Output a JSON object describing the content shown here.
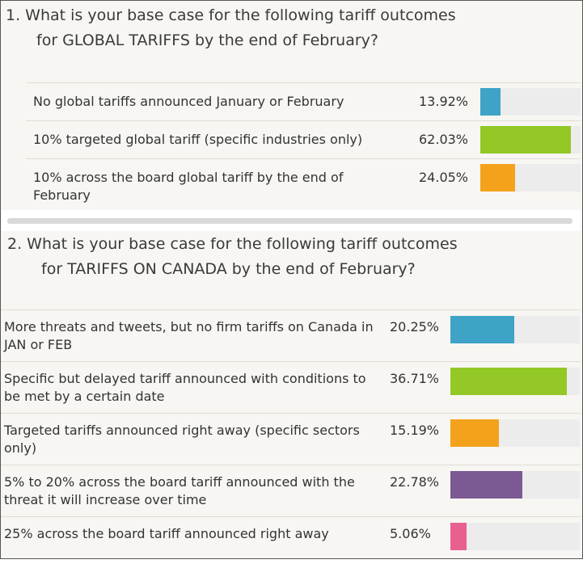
{
  "questions": [
    {
      "title_line1": "1. What is your base case for the following tariff outcomes",
      "title_line2": "for GLOBAL TARIFFS by the end of February?",
      "max_percent": 62.03,
      "options": [
        {
          "label": "No global tariffs announced January or February",
          "percent_text": "13.92%",
          "percent": 13.92,
          "color": "#3ea3c6"
        },
        {
          "label": "10% targeted global tariff (specific industries only)",
          "percent_text": "62.03%",
          "percent": 62.03,
          "color": "#93c827"
        },
        {
          "label": "10% across the board global tariff by the end of February",
          "percent_text": "24.05%",
          "percent": 24.05,
          "color": "#f4a21b"
        }
      ]
    },
    {
      "title_line1": "2. What is your base case for the following tariff outcomes",
      "title_line2": "for TARIFFS ON CANADA by the end of February?",
      "max_percent": 36.71,
      "options": [
        {
          "label": "More threats and tweets, but no firm tariffs on Canada in JAN or FEB",
          "percent_text": "20.25%",
          "percent": 20.25,
          "color": "#3ea3c6"
        },
        {
          "label": "Specific but delayed tariff announced with conditions to be met by a certain date",
          "percent_text": "36.71%",
          "percent": 36.71,
          "color": "#93c827"
        },
        {
          "label": "Targeted tariffs announced right away (specific sectors only)",
          "percent_text": "15.19%",
          "percent": 15.19,
          "color": "#f4a21b"
        },
        {
          "label": "5% to 20% across the board tariff announced with the threat it will increase over time",
          "percent_text": "22.78%",
          "percent": 22.78,
          "color": "#7b5a94"
        },
        {
          "label": "25% across the board tariff announced right away",
          "percent_text": "5.06%",
          "percent": 5.06,
          "color": "#e8608f"
        }
      ]
    }
  ],
  "chart_data": [
    {
      "type": "bar",
      "title": "1. What is your base case for the following tariff outcomes for GLOBAL TARIFFS by the end of February?",
      "categories": [
        "No global tariffs announced January or February",
        "10% targeted global tariff (specific industries only)",
        "10% across the board global tariff by the end of February"
      ],
      "values": [
        13.92,
        62.03,
        24.05
      ],
      "orientation": "horizontal",
      "unit": "%"
    },
    {
      "type": "bar",
      "title": "2. What is your base case for the following tariff outcomes for TARIFFS ON CANADA by the end of February?",
      "categories": [
        "More threats and tweets, but no firm tariffs on Canada in JAN or FEB",
        "Specific but delayed tariff announced with conditions to be met by a certain date",
        "Targeted tariffs announced right away (specific sectors only)",
        "5% to 20% across the board tariff announced with the threat it will increase over time",
        "25% across the board tariff announced right away"
      ],
      "values": [
        20.25,
        36.71,
        15.19,
        22.78,
        5.06
      ],
      "orientation": "horizontal",
      "unit": "%"
    }
  ]
}
